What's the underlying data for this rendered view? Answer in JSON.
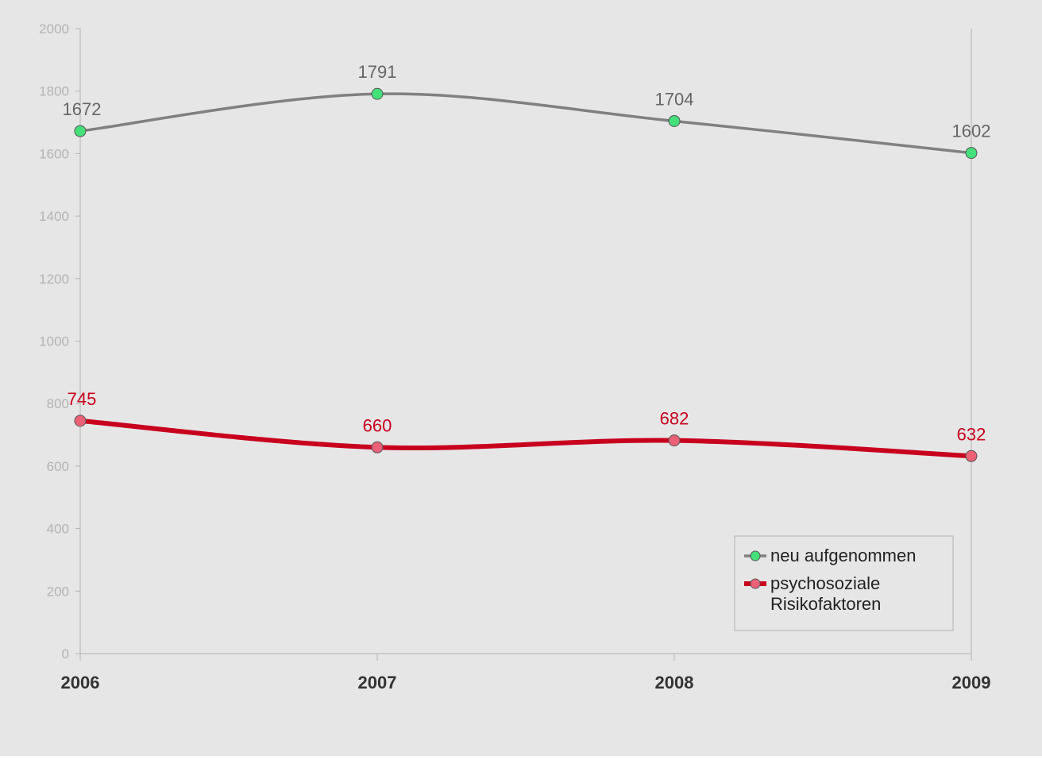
{
  "chart_data": {
    "type": "line",
    "title": "",
    "xlabel": "",
    "ylabel": "",
    "categories": [
      "2006",
      "2007",
      "2008",
      "2009"
    ],
    "ylim": [
      0,
      2000
    ],
    "yticks": [
      "0",
      "200",
      "400",
      "600",
      "800",
      "1000",
      "1200",
      "1400",
      "1600",
      "1800",
      "2000"
    ],
    "grid": false,
    "smooth": true,
    "legend_position": "bottom-right",
    "series": [
      {
        "name": "neu aufgenommen",
        "values": [
          1672,
          1791,
          1704,
          1602
        ],
        "labels": [
          "1672",
          "1791",
          "1704",
          "1602"
        ],
        "line_color": "#808080",
        "marker_color": "#44e07a",
        "label_color": "#666666"
      },
      {
        "name": "psychosoziale Risikofaktoren",
        "legend_lines": [
          "psychosoziale",
          "Risikofaktoren"
        ],
        "values": [
          745,
          660,
          682,
          632
        ],
        "labels": [
          "745",
          "660",
          "682",
          "632"
        ],
        "line_color": "#c8001e",
        "marker_color": "#ec6078",
        "label_color": "#c8001e"
      }
    ],
    "colors": {
      "background": "#e6e6e6",
      "axis": "#b3b3b3",
      "tick_label": "#b3b3b3",
      "category_label": "#333333"
    }
  }
}
